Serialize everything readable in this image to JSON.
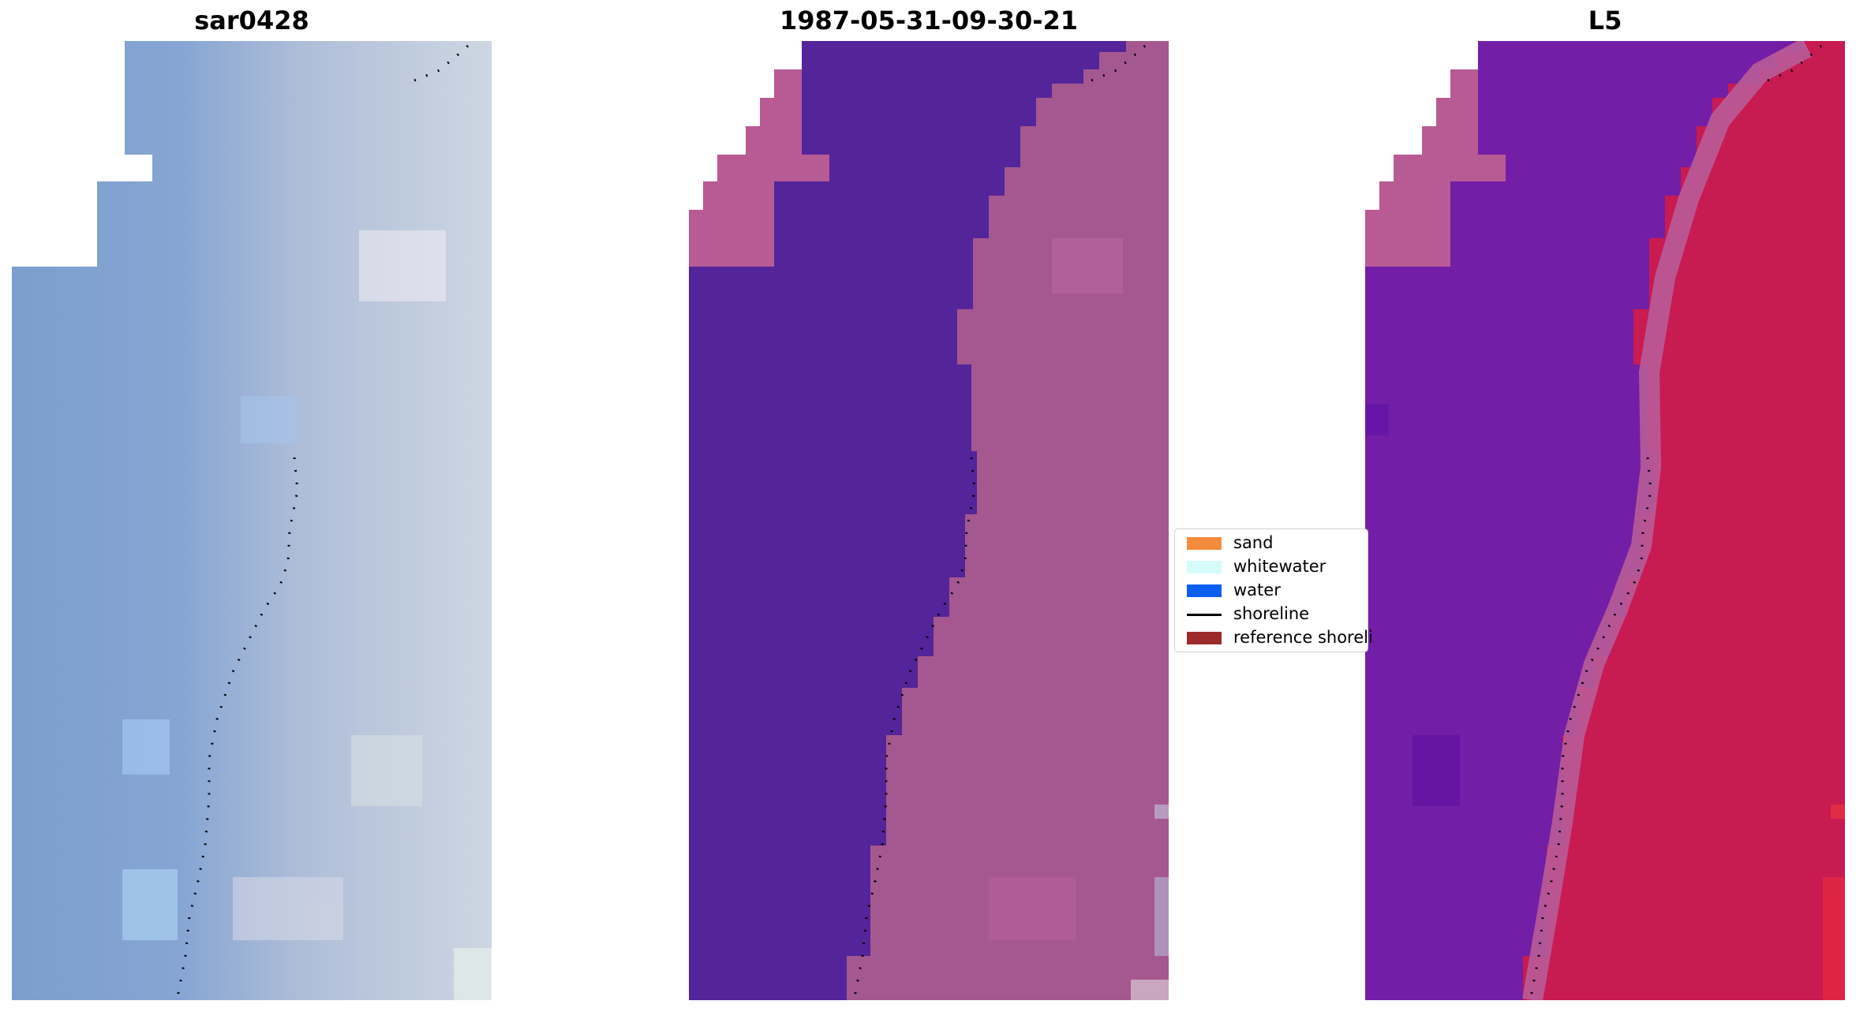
{
  "panels": {
    "left": {
      "title": "sar0428"
    },
    "middle": {
      "title": "1987-05-31-09-30-21"
    },
    "right": {
      "title": "L5"
    }
  },
  "legend": {
    "items": [
      {
        "label": "sand",
        "color": "#f58b3c",
        "kind": "patch"
      },
      {
        "label": "whitewater",
        "color": "#d6fbfb",
        "kind": "patch"
      },
      {
        "label": "water",
        "color": "#0b5ff0",
        "kind": "patch"
      },
      {
        "label": "shoreline",
        "color": "#000000",
        "kind": "line"
      },
      {
        "label": "reference shoreli",
        "color": "#9b2a2a",
        "kind": "patch"
      }
    ]
  },
  "colors": {
    "rgb_water": "#7f9fd0",
    "rgb_land": "#c4cddc",
    "classified_water": "#54249a",
    "classified_land": "#a5588f",
    "nodata_pink": "#b85b95",
    "mndwi_water": "#6a1ba5",
    "mndwi_land": "#cd1a4f",
    "shoreline_dots": "#000000"
  }
}
